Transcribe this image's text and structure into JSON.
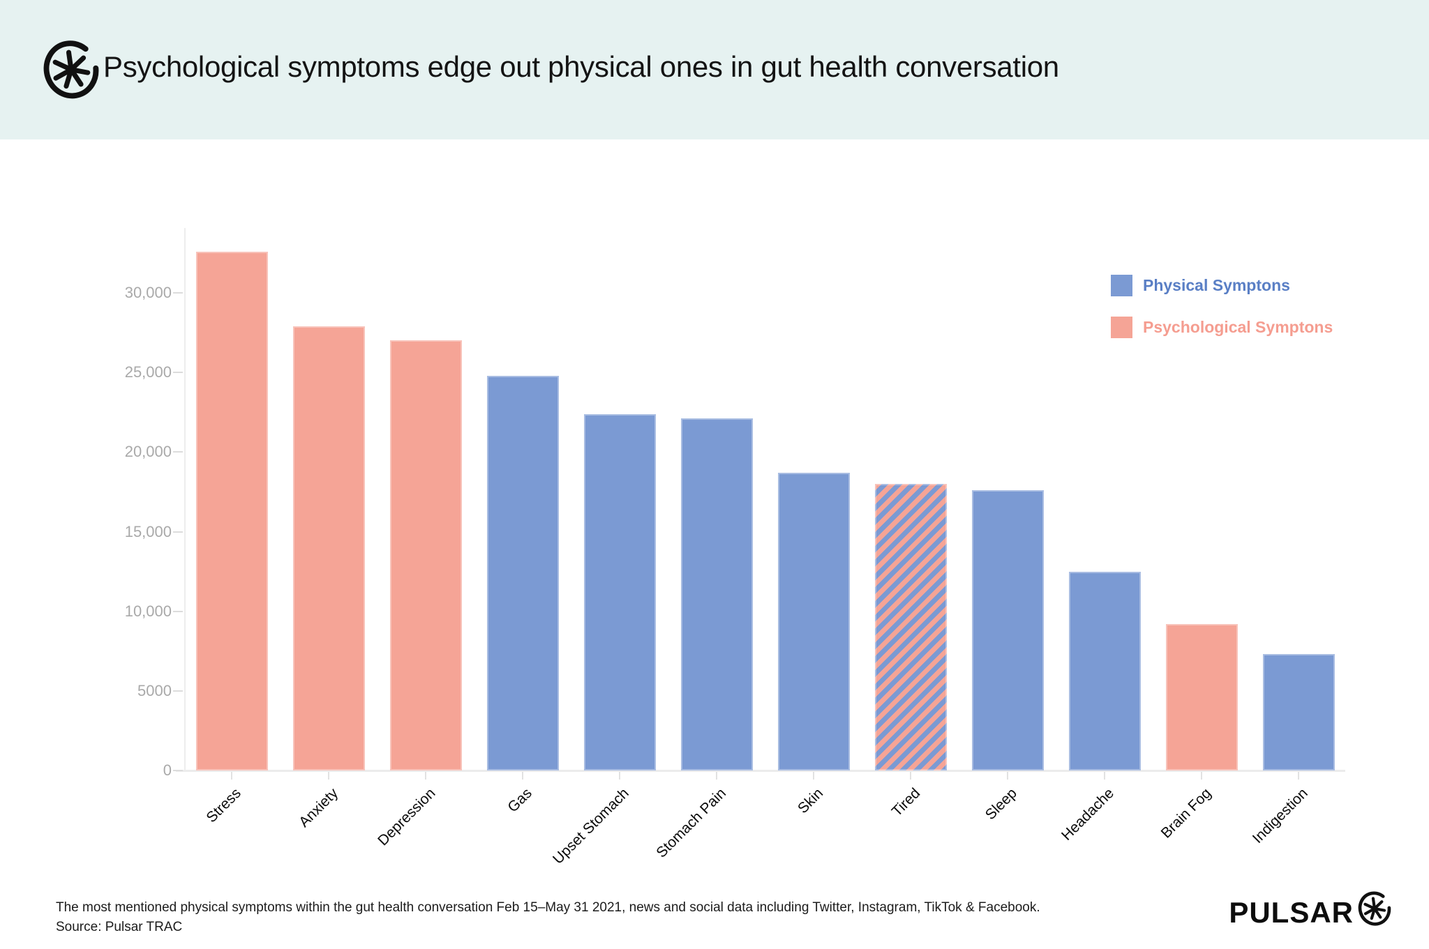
{
  "header": {
    "title": "Psychological symptoms edge out physical ones in gut health conversation",
    "logo": "pulsar-asterisk-logo"
  },
  "legend": {
    "items": [
      {
        "label": "Physical Symptons",
        "color": "#7B9AD3",
        "text_color": "#5A7FC5"
      },
      {
        "label": "Psychological Symptons",
        "color": "#F5A496",
        "text_color": "#F59D90"
      }
    ]
  },
  "chart_data": {
    "type": "bar",
    "title": "Psychological symptoms edge out physical ones in gut health conversation",
    "categories": [
      "Stress",
      "Anxiety",
      "Depression",
      "Gas",
      "Upset Stomach",
      "Stomach Pain",
      "Skin",
      "Tired",
      "Sleep",
      "Headache",
      "Brain Fog",
      "Indigestion"
    ],
    "values": [
      32600,
      27900,
      27000,
      24800,
      22400,
      22100,
      18700,
      18000,
      17600,
      12500,
      9200,
      7300
    ],
    "bar_series": [
      "psychological",
      "psychological",
      "psychological",
      "physical",
      "physical",
      "physical",
      "physical",
      "mixed",
      "physical",
      "physical",
      "psychological",
      "physical"
    ],
    "series": [
      {
        "name": "Physical Symptons",
        "color": "#7B9AD3"
      },
      {
        "name": "Psychological Symptons",
        "color": "#F5A496"
      }
    ],
    "mixed_bar_note": "Tired bar is hatched with both series colors",
    "xlabel": "",
    "ylabel": "",
    "ylim": [
      0,
      34000
    ],
    "yticks": [
      {
        "label": "0",
        "value": 0
      },
      {
        "label": "5000",
        "value": 5000
      },
      {
        "label": "10,000",
        "value": 10000
      },
      {
        "label": "15,000",
        "value": 15000
      },
      {
        "label": "20,000",
        "value": 20000
      },
      {
        "label": "25,000",
        "value": 25000
      },
      {
        "label": "30,000",
        "value": 30000
      }
    ],
    "grid": false,
    "legend_position": "top-right",
    "x_label_rotation": -45
  },
  "footer": {
    "line1": "The most mentioned physical symptoms within the gut health conversation Feb 15–May 31 2021, news and social data including Twitter, Instagram, TikTok & Facebook.",
    "line2": "Source: Pulsar TRAC",
    "brand": "PULSAR"
  }
}
